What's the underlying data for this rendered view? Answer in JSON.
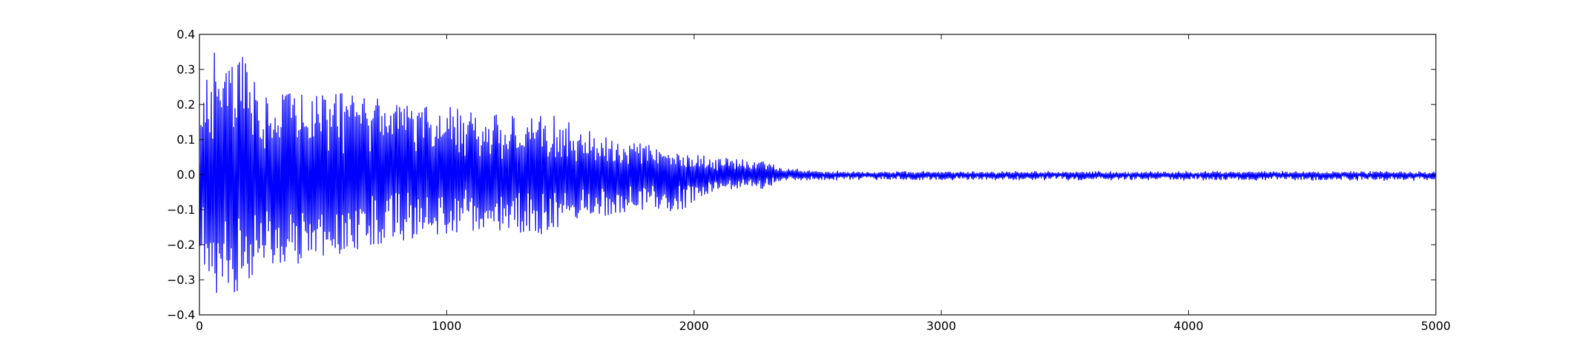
{
  "chart_data": {
    "type": "line",
    "title": "",
    "xlabel": "",
    "ylabel": "",
    "xlim": [
      0,
      5000
    ],
    "ylim": [
      -0.4,
      0.4
    ],
    "x_ticks": [
      0,
      1000,
      2000,
      3000,
      4000,
      5000
    ],
    "y_ticks": [
      -0.4,
      -0.3,
      -0.2,
      -0.1,
      0.0,
      0.1,
      0.2,
      0.3,
      0.4
    ],
    "x_tick_labels": [
      "0",
      "1000",
      "2000",
      "3000",
      "4000",
      "5000"
    ],
    "y_tick_labels": [
      "−0.4",
      "−0.3",
      "−0.2",
      "−0.1",
      "0.0",
      "0.1",
      "0.2",
      "0.3",
      "0.4"
    ],
    "grid": false,
    "legend": "none",
    "series_color": "#0000ff",
    "series": [
      {
        "x_start": 0,
        "x_end": 5000,
        "envelope_x": [
          0,
          50,
          100,
          150,
          200,
          250,
          300,
          400,
          500,
          600,
          700,
          800,
          900,
          1000,
          1100,
          1200,
          1300,
          1400,
          1500,
          1600,
          1700,
          1800,
          1900,
          2000,
          2100,
          2150,
          2200,
          2300,
          2350,
          2400,
          2500,
          2600,
          3000,
          3500,
          4000,
          4500,
          5000
        ],
        "envelope_upper": [
          0.12,
          0.37,
          0.3,
          0.37,
          0.3,
          0.28,
          0.26,
          0.24,
          0.23,
          0.24,
          0.22,
          0.21,
          0.2,
          0.2,
          0.19,
          0.17,
          0.17,
          0.18,
          0.15,
          0.12,
          0.1,
          0.09,
          0.06,
          0.06,
          0.05,
          0.05,
          0.04,
          0.04,
          0.02,
          0.015,
          0.01,
          0.008,
          0.008,
          0.008,
          0.008,
          0.008,
          0.008
        ],
        "envelope_lower": [
          -0.28,
          -0.36,
          -0.34,
          -0.36,
          -0.3,
          -0.28,
          -0.25,
          -0.26,
          -0.24,
          -0.22,
          -0.2,
          -0.19,
          -0.18,
          -0.18,
          -0.17,
          -0.16,
          -0.17,
          -0.17,
          -0.14,
          -0.12,
          -0.11,
          -0.1,
          -0.12,
          -0.08,
          -0.05,
          -0.04,
          -0.04,
          -0.04,
          -0.02,
          -0.015,
          -0.015,
          -0.015,
          -0.015,
          -0.015,
          -0.015,
          -0.015,
          -0.015
        ]
      }
    ]
  }
}
